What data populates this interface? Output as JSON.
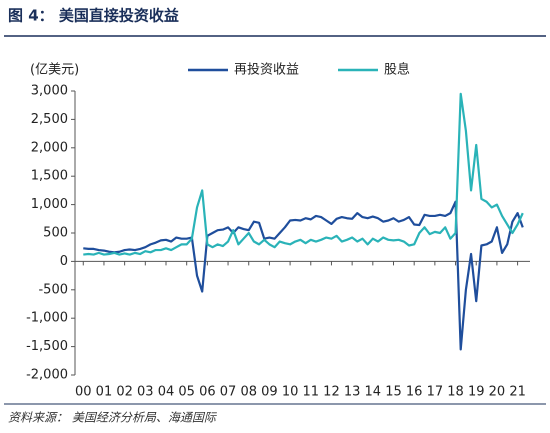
{
  "chart_data": {
    "type": "line",
    "title": "图 4： 美国直接投资收益",
    "y_label": "(亿美元)",
    "source": "资料来源： 美国经济分析局、海通国际",
    "x": [
      2000,
      2000.25,
      2000.5,
      2000.75,
      2001,
      2001.25,
      2001.5,
      2001.75,
      2002,
      2002.25,
      2002.5,
      2002.75,
      2003,
      2003.25,
      2003.5,
      2003.75,
      2004,
      2004.25,
      2004.5,
      2004.75,
      2005,
      2005.25,
      2005.5,
      2005.75,
      2006,
      2006.25,
      2006.5,
      2006.75,
      2007,
      2007.25,
      2007.5,
      2007.75,
      2008,
      2008.25,
      2008.5,
      2008.75,
      2009,
      2009.25,
      2009.5,
      2009.75,
      2010,
      2010.25,
      2010.5,
      2010.75,
      2011,
      2011.25,
      2011.5,
      2011.75,
      2012,
      2012.25,
      2012.5,
      2012.75,
      2013,
      2013.25,
      2013.5,
      2013.75,
      2014,
      2014.25,
      2014.5,
      2014.75,
      2015,
      2015.25,
      2015.5,
      2015.75,
      2016,
      2016.25,
      2016.5,
      2016.75,
      2017,
      2017.25,
      2017.5,
      2017.75,
      2018,
      2018.25,
      2018.5,
      2018.75,
      2019,
      2019.25,
      2019.5,
      2019.75,
      2020,
      2020.25,
      2020.5,
      2020.75,
      2021,
      2021.25
    ],
    "series": [
      {
        "name": "再投资收益",
        "color": "#1f4e9c",
        "values": [
          230,
          220,
          220,
          200,
          190,
          170,
          160,
          170,
          200,
          210,
          200,
          220,
          250,
          300,
          330,
          370,
          380,
          350,
          420,
          400,
          400,
          420,
          -250,
          -530,
          450,
          500,
          550,
          560,
          600,
          500,
          600,
          570,
          550,
          700,
          680,
          400,
          420,
          400,
          500,
          600,
          720,
          730,
          720,
          760,
          740,
          800,
          780,
          720,
          660,
          750,
          780,
          760,
          750,
          850,
          780,
          760,
          790,
          760,
          700,
          720,
          760,
          700,
          730,
          780,
          650,
          640,
          820,
          800,
          800,
          820,
          800,
          850,
          1050,
          -1550,
          -500,
          130,
          -700,
          280,
          300,
          350,
          600,
          150,
          300,
          700,
          850,
          600
        ]
      },
      {
        "name": "股息",
        "color": "#2ab3b8",
        "values": [
          120,
          130,
          120,
          150,
          120,
          130,
          150,
          120,
          140,
          120,
          150,
          130,
          180,
          160,
          200,
          200,
          230,
          200,
          250,
          300,
          300,
          400,
          950,
          1250,
          300,
          250,
          300,
          270,
          350,
          550,
          300,
          400,
          500,
          350,
          300,
          380,
          300,
          250,
          350,
          320,
          300,
          350,
          380,
          320,
          380,
          350,
          380,
          420,
          400,
          450,
          350,
          380,
          420,
          350,
          400,
          300,
          400,
          350,
          420,
          380,
          370,
          380,
          350,
          280,
          300,
          500,
          600,
          480,
          520,
          500,
          600,
          400,
          500,
          2950,
          2300,
          1250,
          2050,
          1100,
          1050,
          950,
          1000,
          800,
          650,
          500,
          650,
          850
        ]
      }
    ],
    "xlim": [
      1999.6,
      2021.6
    ],
    "xticks": [
      {
        "value": 2000,
        "label": "00"
      },
      {
        "value": 2001,
        "label": "01"
      },
      {
        "value": 2002,
        "label": "02"
      },
      {
        "value": 2003,
        "label": "03"
      },
      {
        "value": 2004,
        "label": "04"
      },
      {
        "value": 2005,
        "label": "05"
      },
      {
        "value": 2006,
        "label": "06"
      },
      {
        "value": 2007,
        "label": "07"
      },
      {
        "value": 2008,
        "label": "08"
      },
      {
        "value": 2009,
        "label": "09"
      },
      {
        "value": 2010,
        "label": "10"
      },
      {
        "value": 2011,
        "label": "11"
      },
      {
        "value": 2012,
        "label": "12"
      },
      {
        "value": 2013,
        "label": "13"
      },
      {
        "value": 2014,
        "label": "14"
      },
      {
        "value": 2015,
        "label": "15"
      },
      {
        "value": 2016,
        "label": "16"
      },
      {
        "value": 2017,
        "label": "17"
      },
      {
        "value": 2018,
        "label": "18"
      },
      {
        "value": 2019,
        "label": "19"
      },
      {
        "value": 2020,
        "label": "20"
      },
      {
        "value": 2021,
        "label": "21"
      }
    ],
    "ylim": [
      -2000,
      3000
    ],
    "yticks": [
      {
        "value": -2000,
        "label": "-2,000"
      },
      {
        "value": -1500,
        "label": "-1,500"
      },
      {
        "value": -1000,
        "label": "-1,000"
      },
      -500,
      0,
      500,
      {
        "value": 1000,
        "label": "1,000"
      },
      {
        "value": 1500,
        "label": "1,500"
      },
      {
        "value": 2000,
        "label": "2,000"
      },
      {
        "value": 2500,
        "label": "2,500"
      },
      {
        "value": 3000,
        "label": "3,000"
      }
    ],
    "legend": "top"
  }
}
